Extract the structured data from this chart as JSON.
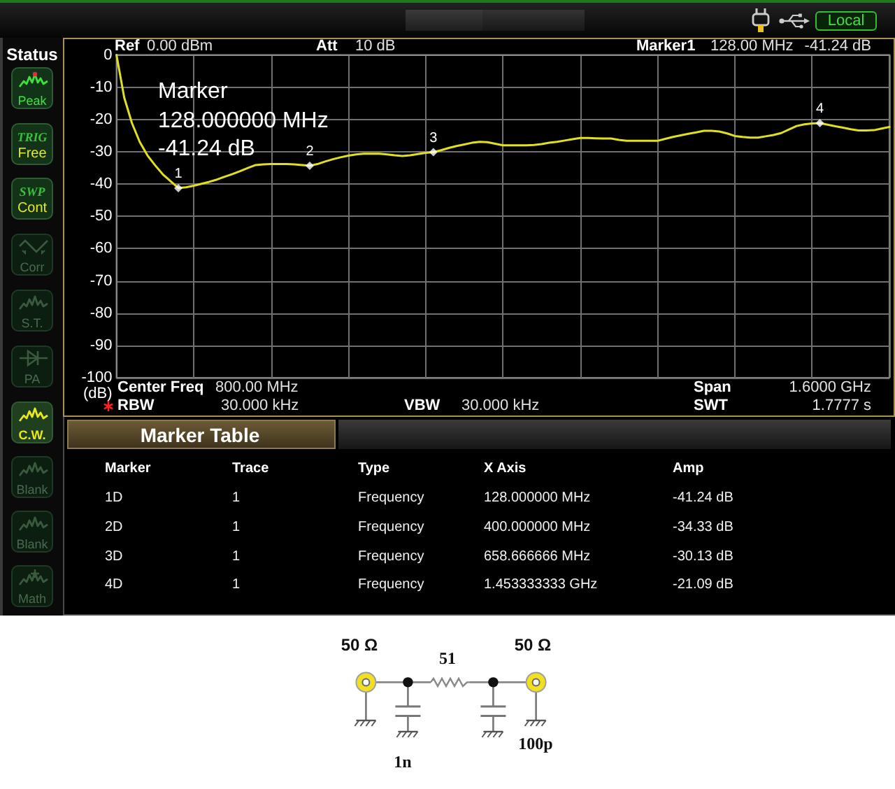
{
  "chart_data": {
    "type": "line",
    "ylabel": "(dB)",
    "categories": [
      null,
      null,
      null,
      null,
      null,
      null,
      null,
      null,
      null,
      null,
      null,
      null,
      null,
      null,
      null,
      null,
      null,
      null,
      null,
      null,
      null,
      null,
      null,
      null,
      null,
      null,
      null,
      null,
      null,
      null,
      null,
      null,
      null,
      null,
      null,
      null,
      null,
      null,
      null,
      null,
      null,
      null,
      null,
      null,
      null,
      null,
      null,
      null,
      null,
      null,
      null,
      null,
      null,
      null,
      null,
      null,
      null,
      null,
      null,
      null,
      null,
      null,
      null,
      null,
      null,
      null,
      null,
      null,
      null,
      null,
      null,
      null,
      null,
      null,
      null,
      null,
      null,
      null,
      null,
      null,
      null,
      null,
      null,
      null,
      null,
      null,
      null,
      null,
      null,
      null,
      null,
      null,
      null,
      null,
      null,
      null,
      null,
      null,
      null,
      null,
      null
    ],
    "series": [
      {
        "color": "#e0e020",
        "values": [
          0,
          -13.2,
          -21.1,
          -26.9,
          -31.1,
          -34.2,
          -37.0,
          -39.1,
          -41.2,
          -41.0,
          -40.5,
          -39.9,
          -39.3,
          -38.6,
          -37.7,
          -36.9,
          -36.0,
          -35.0,
          -34.1,
          -33.9,
          -33.8,
          -33.8,
          -33.8,
          -33.9,
          -34.1,
          -34.3,
          -33.8,
          -33.0,
          -32.3,
          -31.7,
          -31.2,
          -30.8,
          -30.6,
          -30.6,
          -30.6,
          -30.8,
          -31.1,
          -31.3,
          -31.1,
          -30.7,
          -30.3,
          -30.1,
          -29.5,
          -28.8,
          -28.2,
          -27.7,
          -27.2,
          -26.9,
          -27.0,
          -27.5,
          -28.0,
          -28.0,
          -28.0,
          -28.0,
          -27.9,
          -27.6,
          -27.2,
          -26.9,
          -26.5,
          -26.1,
          -25.7,
          -25.7,
          -25.8,
          -25.9,
          -25.9,
          -26.3,
          -26.6,
          -26.6,
          -26.6,
          -26.6,
          -26.6,
          -26.0,
          -25.4,
          -24.9,
          -24.4,
          -24.0,
          -23.5,
          -23.5,
          -23.7,
          -24.3,
          -25.1,
          -25.4,
          -25.6,
          -25.6,
          -25.2,
          -24.8,
          -24.2,
          -23.1,
          -22.0,
          -21.5,
          -21.2,
          -21.1,
          -21.6,
          -22.1,
          -22.5,
          -23.0,
          -23.4,
          -23.4,
          -23.3,
          -22.8,
          -22.3
        ]
      },
      {
        "type": "scatter",
        "color": "#ffffff",
        "marker": "diamond",
        "values": [
          null,
          null,
          null,
          null,
          null,
          null,
          null,
          null,
          -41.24,
          null,
          null,
          null,
          null,
          null,
          null,
          null,
          null,
          null,
          null,
          null,
          null,
          null,
          null,
          null,
          null,
          -34.33,
          null,
          null,
          null,
          null,
          null,
          null,
          null,
          null,
          null,
          null,
          null,
          null,
          null,
          null,
          null,
          -30.13,
          null,
          null,
          null,
          null,
          null,
          null,
          null,
          null,
          null,
          null,
          null,
          null,
          null,
          null,
          null,
          null,
          null,
          null,
          null,
          null,
          null,
          null,
          null,
          null,
          null,
          null,
          null,
          null,
          null,
          null,
          null,
          null,
          null,
          null,
          null,
          null,
          null,
          null,
          null,
          null,
          null,
          null,
          null,
          null,
          null,
          null,
          null,
          null,
          null,
          -21.09,
          null,
          null,
          null,
          null,
          null,
          null,
          null,
          null,
          null
        ]
      }
    ],
    "line_style": "solid",
    "ylim": [
      -100,
      0
    ],
    "yticks": [
      -100,
      -90,
      -80,
      -70,
      -60,
      -50,
      -40,
      -30,
      -20,
      -10,
      0
    ],
    "grid": true,
    "tick_labels": "y",
    "annotations": [
      "Ref",
      "0.00 dBm",
      "Att",
      "10 dB",
      "Marker1",
      "128.00 MHz",
      "-41.24 dB",
      "Center Freq",
      "800.00 MHz",
      "RBW",
      "30.000 kHz",
      "VBW",
      "30.000 kHz",
      "Span",
      "1.6000 GHz",
      "SWT",
      "1.7777 s",
      "Marker",
      "128.000000 MHz",
      "-41.24 dB",
      "Marker Table",
      "Marker",
      "Trace",
      "Type",
      "X Axis",
      "Amp",
      "1D",
      "1",
      "Frequency",
      "128.000000 MHz",
      "-41.24 dB",
      "2D",
      "1",
      "Frequency",
      "400.000000 MHz",
      "-34.33 dB",
      "3D",
      "1",
      "Frequency",
      "658.666666 MHz",
      "-30.13 dB",
      "4D",
      "1",
      "Frequency",
      "1.453333333 GHz",
      "-21.09 dB",
      "Status",
      "Peak",
      "TRIG",
      "Free",
      "SWP",
      "Cont",
      "Corr",
      "S.T.",
      "PA",
      "C.W.",
      "Blank",
      "Blank",
      "Math",
      "Local",
      "50 Ω",
      "51",
      "50 Ω",
      "1n",
      "100p",
      "1",
      "2",
      "3",
      "4"
    ]
  }
}
